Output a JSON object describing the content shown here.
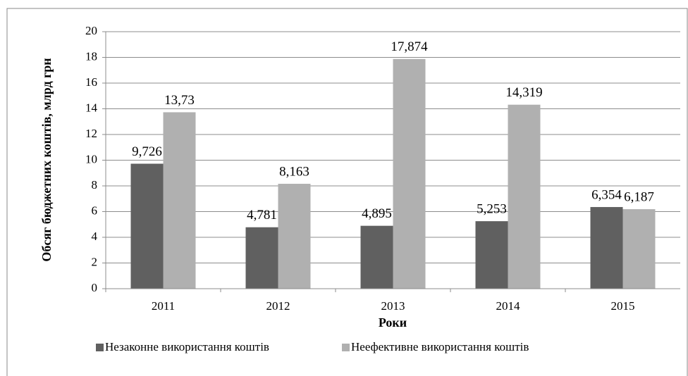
{
  "chart_data": {
    "type": "bar",
    "categories": [
      "2011",
      "2012",
      "2013",
      "2014",
      "2015"
    ],
    "series": [
      {
        "name": "Незаконне використання коштів",
        "color": "#606060",
        "values": [
          9.726,
          4.781,
          4.895,
          5.253,
          6.354
        ],
        "value_labels": [
          "9,726",
          "4,781",
          "4,895",
          "5,253",
          "6,354"
        ]
      },
      {
        "name": "Неефективне використання коштів",
        "color": "#b0b0b0",
        "values": [
          13.73,
          8.163,
          17.874,
          14.319,
          6.187
        ],
        "value_labels": [
          "13,73",
          "8,163",
          "17,874",
          "14,319",
          "6,187"
        ]
      }
    ],
    "ylabel": "Обсяг бюджетних коштів, млрд грн",
    "xlabel": "Роки",
    "ylim": [
      0,
      20
    ],
    "yticks": [
      0,
      2,
      4,
      6,
      8,
      10,
      12,
      14,
      16,
      18,
      20
    ],
    "grid": true,
    "legend": "bottom"
  }
}
